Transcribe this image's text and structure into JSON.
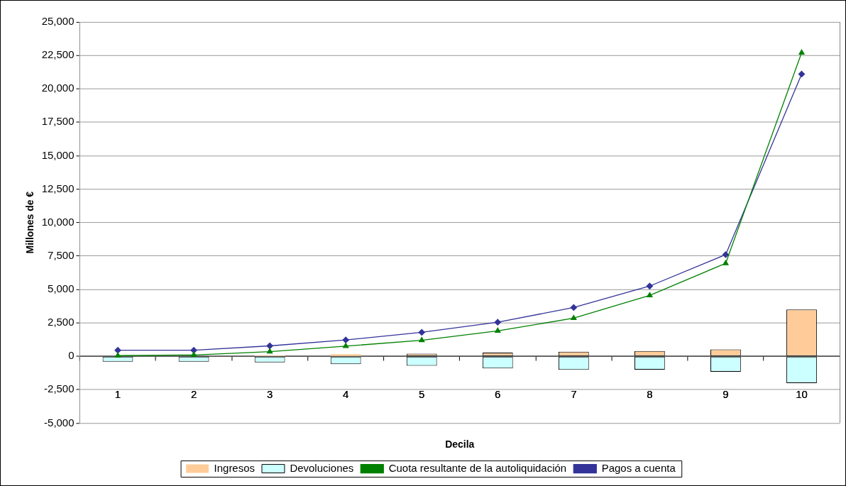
{
  "chart_data": {
    "type": "bar",
    "categories": [
      "1",
      "2",
      "3",
      "4",
      "5",
      "6",
      "7",
      "8",
      "9",
      "10"
    ],
    "xlabel": "Decila",
    "ylabel": "Millones de €",
    "stacked": true,
    "ylim": [
      -5000,
      25000
    ],
    "yticks": [
      {
        "value": -5000,
        "label": "-5,000"
      },
      {
        "value": -2500,
        "label": "-2,500"
      },
      0,
      {
        "value": 2500,
        "label": "2,500"
      },
      {
        "value": 5000,
        "label": "5,000"
      },
      {
        "value": 7500,
        "label": "7,500"
      },
      {
        "value": 10000,
        "label": "10,000"
      },
      {
        "value": 12500,
        "label": "12,500"
      },
      {
        "value": 15000,
        "label": "15,000"
      },
      {
        "value": 17500,
        "label": "17,500"
      },
      {
        "value": 20000,
        "label": "20,000"
      },
      {
        "value": 22500,
        "label": "22,500"
      },
      {
        "value": 25000,
        "label": "25,000"
      }
    ],
    "grid": "y",
    "legend": "bottom",
    "series": [
      {
        "name": "Ingresos",
        "color": "#ffcc99",
        "values": [
          0,
          0,
          60,
          150,
          200,
          270,
          340,
          400,
          520,
          3500
        ]
      },
      {
        "name": "Devoluciones",
        "color": "#ccffff",
        "values": [
          -400,
          -400,
          -460,
          -590,
          -700,
          -900,
          -1010,
          -1000,
          -1150,
          -2000
        ]
      },
      {
        "name": "Cuota resultante de la autoliquidación",
        "type": "line",
        "color": "#008000",
        "marker": "triangle",
        "values": [
          50,
          100,
          350,
          760,
          1200,
          1900,
          2850,
          4550,
          6950,
          22700
        ]
      },
      {
        "name": "Pagos a cuenta",
        "type": "line",
        "color": "#333399",
        "marker": "diamond",
        "values": [
          450,
          450,
          780,
          1220,
          1790,
          2550,
          3650,
          5250,
          7600,
          21100
        ]
      }
    ]
  }
}
